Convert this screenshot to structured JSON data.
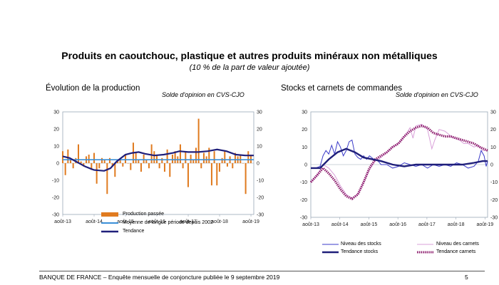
{
  "page": {
    "title": "Produits en caoutchouc, plastique et autres produits minéraux non métalliques",
    "subtitle": "(10 % de la part de valeur ajoutée)",
    "footer_left": "BANQUE DE FRANCE –   Enquête mensuelle de conjoncture publiée le 9 septembre 2019",
    "footer_page": "5"
  },
  "colors": {
    "production": "#E07B20",
    "moyenne": "#3A8FD8",
    "tendance": "#1F1F7A",
    "stocks": "#3A3AC8",
    "carnets": "#D9A0D9",
    "tendance_carnets": "#8B1A6B"
  },
  "chart_data": [
    {
      "type": "bar",
      "title": "Évolution de la production",
      "note": "Solde d'opinion en CVS-CJO",
      "ylim": [
        -30,
        30
      ],
      "yticks": [
        -30,
        -20,
        -10,
        0,
        10,
        20,
        30
      ],
      "xlim": [
        2013.58,
        2019.67
      ],
      "xticks": [
        {
          "x": 2013.58,
          "label": "août-13"
        },
        {
          "x": 2014.58,
          "label": "août-14"
        },
        {
          "x": 2015.58,
          "label": "août-15"
        },
        {
          "x": 2016.58,
          "label": "août-16"
        },
        {
          "x": 2017.58,
          "label": "août-17"
        },
        {
          "x": 2018.58,
          "label": "août-18"
        },
        {
          "x": 2019.58,
          "label": "août-19"
        }
      ],
      "grid": false,
      "legend": "bottom",
      "series": [
        {
          "name": "Production passée",
          "kind": "bar",
          "start": 2013.58,
          "step": 0.0833,
          "values": [
            7,
            -7,
            8,
            2,
            -3,
            3,
            11,
            1,
            -2,
            4,
            5,
            -4,
            6,
            -12,
            -3,
            3,
            2,
            -18,
            3,
            -2,
            -8,
            1,
            3,
            -2,
            5,
            0,
            -4,
            12,
            6,
            2,
            -5,
            5,
            2,
            -3,
            11,
            7,
            5,
            -3,
            3,
            -5,
            8,
            -8,
            5,
            7,
            4,
            11,
            -3,
            7,
            -14,
            5,
            2,
            9,
            26,
            -3,
            6,
            4,
            9,
            -13,
            7,
            -13,
            -5,
            3,
            7,
            -2,
            4,
            -3,
            6,
            4,
            5,
            0,
            -18,
            7,
            5
          ]
        },
        {
          "name": "Moyenne de longue période depuis 2002",
          "kind": "line",
          "values": [
            [
              2013.58,
              2
            ],
            [
              2019.67,
              2
            ]
          ]
        },
        {
          "name": "Tendance",
          "kind": "line",
          "values": [
            [
              2013.58,
              4
            ],
            [
              2013.8,
              3
            ],
            [
              2014.0,
              1
            ],
            [
              2014.3,
              -2
            ],
            [
              2014.58,
              -4
            ],
            [
              2014.9,
              -4.5
            ],
            [
              2015.1,
              -3
            ],
            [
              2015.3,
              1
            ],
            [
              2015.58,
              5
            ],
            [
              2015.8,
              6
            ],
            [
              2016.0,
              6.5
            ],
            [
              2016.2,
              5.5
            ],
            [
              2016.5,
              4.5
            ],
            [
              2016.8,
              5
            ],
            [
              2017.1,
              6
            ],
            [
              2017.3,
              7
            ],
            [
              2017.58,
              6.5
            ],
            [
              2017.9,
              6.5
            ],
            [
              2018.2,
              7
            ],
            [
              2018.5,
              8
            ],
            [
              2018.8,
              7
            ],
            [
              2019.1,
              5
            ],
            [
              2019.4,
              4.5
            ],
            [
              2019.67,
              4.5
            ]
          ]
        }
      ]
    },
    {
      "type": "line",
      "title": "Stocks et carnets de commandes",
      "note": "Solde d'opinion en CVS-CJO",
      "ylim": [
        -30,
        30
      ],
      "yticks": [
        -30,
        -20,
        -10,
        0,
        10,
        20,
        30
      ],
      "xlim": [
        2013.58,
        2019.67
      ],
      "xticks": [
        {
          "x": 2013.58,
          "label": "août-13"
        },
        {
          "x": 2014.58,
          "label": "août-14"
        },
        {
          "x": 2015.58,
          "label": "août-15"
        },
        {
          "x": 2016.58,
          "label": "août-16"
        },
        {
          "x": 2017.58,
          "label": "août-17"
        },
        {
          "x": 2018.58,
          "label": "août-18"
        },
        {
          "x": 2019.58,
          "label": "août-19"
        }
      ],
      "grid": false,
      "legend": "bottom",
      "series": [
        {
          "name": "Niveau des stocks",
          "values": [
            [
              2013.58,
              -2
            ],
            [
              2013.75,
              -2
            ],
            [
              2013.9,
              -1
            ],
            [
              2014.0,
              5
            ],
            [
              2014.1,
              8
            ],
            [
              2014.2,
              6
            ],
            [
              2014.3,
              11
            ],
            [
              2014.4,
              6
            ],
            [
              2014.5,
              13
            ],
            [
              2014.6,
              10
            ],
            [
              2014.7,
              5
            ],
            [
              2014.8,
              8
            ],
            [
              2014.9,
              13
            ],
            [
              2015.0,
              14
            ],
            [
              2015.1,
              6
            ],
            [
              2015.2,
              4
            ],
            [
              2015.3,
              3
            ],
            [
              2015.4,
              5
            ],
            [
              2015.5,
              3
            ],
            [
              2015.6,
              5
            ],
            [
              2015.75,
              3
            ],
            [
              2015.9,
              2
            ],
            [
              2016.0,
              0
            ],
            [
              2016.2,
              0
            ],
            [
              2016.4,
              -2
            ],
            [
              2016.6,
              -1
            ],
            [
              2016.8,
              1
            ],
            [
              2017.0,
              0
            ],
            [
              2017.2,
              -1
            ],
            [
              2017.4,
              0
            ],
            [
              2017.6,
              -2
            ],
            [
              2017.8,
              0
            ],
            [
              2018.0,
              -1
            ],
            [
              2018.2,
              0
            ],
            [
              2018.4,
              -1
            ],
            [
              2018.6,
              1
            ],
            [
              2018.8,
              0
            ],
            [
              2019.0,
              -2
            ],
            [
              2019.2,
              -1
            ],
            [
              2019.35,
              2
            ],
            [
              2019.45,
              8
            ],
            [
              2019.55,
              5
            ],
            [
              2019.62,
              -1
            ],
            [
              2019.67,
              2
            ]
          ]
        },
        {
          "name": "Niveau des carnets",
          "values": [
            [
              2013.58,
              -10
            ],
            [
              2013.8,
              -6
            ],
            [
              2014.0,
              0
            ],
            [
              2014.2,
              -2
            ],
            [
              2014.4,
              -6
            ],
            [
              2014.6,
              -12
            ],
            [
              2014.8,
              -17
            ],
            [
              2015.0,
              -19
            ],
            [
              2015.2,
              -17
            ],
            [
              2015.4,
              -10
            ],
            [
              2015.6,
              -3
            ],
            [
              2015.8,
              2
            ],
            [
              2016.0,
              4
            ],
            [
              2016.2,
              7
            ],
            [
              2016.4,
              10
            ],
            [
              2016.6,
              12
            ],
            [
              2016.8,
              16
            ],
            [
              2017.0,
              21
            ],
            [
              2017.1,
              15
            ],
            [
              2017.2,
              22
            ],
            [
              2017.4,
              23
            ],
            [
              2017.6,
              20
            ],
            [
              2017.75,
              9
            ],
            [
              2017.85,
              14
            ],
            [
              2018.0,
              20
            ],
            [
              2018.2,
              19
            ],
            [
              2018.35,
              17
            ],
            [
              2018.5,
              15
            ],
            [
              2018.7,
              14
            ],
            [
              2018.85,
              12
            ],
            [
              2019.0,
              12
            ],
            [
              2019.2,
              10
            ],
            [
              2019.35,
              11
            ],
            [
              2019.5,
              8
            ],
            [
              2019.67,
              8
            ]
          ]
        },
        {
          "name": "Tendance stocks",
          "values": [
            [
              2013.58,
              -2
            ],
            [
              2013.9,
              -2
            ],
            [
              2014.2,
              3
            ],
            [
              2014.5,
              7
            ],
            [
              2014.8,
              9
            ],
            [
              2015.1,
              7
            ],
            [
              2015.4,
              4
            ],
            [
              2015.7,
              3
            ],
            [
              2016.0,
              2
            ],
            [
              2016.4,
              0
            ],
            [
              2016.8,
              -1
            ],
            [
              2017.2,
              0
            ],
            [
              2017.6,
              0
            ],
            [
              2018.0,
              0
            ],
            [
              2018.4,
              0
            ],
            [
              2018.8,
              0
            ],
            [
              2019.2,
              1
            ],
            [
              2019.5,
              2
            ],
            [
              2019.67,
              2
            ]
          ]
        },
        {
          "name": "Tendance carnets",
          "values": [
            [
              2013.58,
              -10
            ],
            [
              2013.8,
              -6
            ],
            [
              2014.0,
              -2
            ],
            [
              2014.2,
              -5
            ],
            [
              2014.4,
              -9
            ],
            [
              2014.6,
              -14
            ],
            [
              2014.8,
              -18
            ],
            [
              2015.0,
              -19.5
            ],
            [
              2015.2,
              -17
            ],
            [
              2015.4,
              -10
            ],
            [
              2015.6,
              -2
            ],
            [
              2015.8,
              3
            ],
            [
              2016.0,
              5
            ],
            [
              2016.2,
              7
            ],
            [
              2016.4,
              10
            ],
            [
              2016.6,
              12
            ],
            [
              2016.8,
              16
            ],
            [
              2017.0,
              19
            ],
            [
              2017.2,
              21
            ],
            [
              2017.4,
              22
            ],
            [
              2017.6,
              21
            ],
            [
              2017.8,
              18
            ],
            [
              2018.0,
              17
            ],
            [
              2018.2,
              16
            ],
            [
              2018.4,
              16
            ],
            [
              2018.6,
              15
            ],
            [
              2018.8,
              14
            ],
            [
              2019.0,
              13
            ],
            [
              2019.2,
              12
            ],
            [
              2019.4,
              10
            ],
            [
              2019.67,
              8
            ]
          ]
        }
      ]
    }
  ]
}
